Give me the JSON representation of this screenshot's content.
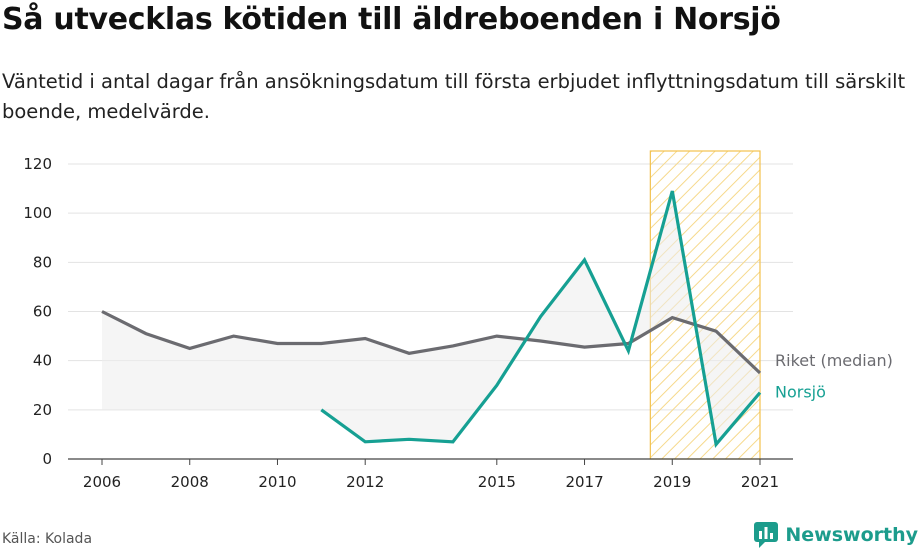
{
  "title": "Så utvecklas kötiden till äldreboenden i Norsjö",
  "subtitle": "Väntetid i antal dagar från ansökningsdatum till första erbjudet inflyttningsdatum till särskilt boende, medelvärde.",
  "source": "Källa: Kolada",
  "brand": "Newsworthy",
  "colors": {
    "riket": "#6b6b70",
    "norsjo": "#16a093",
    "grid": "#e3e3e3",
    "axis": "#444444",
    "area": "#ececec",
    "highlight_stroke": "#f2c14e"
  },
  "chart_data": {
    "type": "line",
    "xlim": [
      2006,
      2021
    ],
    "ylim": [
      0,
      120
    ],
    "x_ticks": [
      2006,
      2008,
      2010,
      2012,
      2015,
      2017,
      2019,
      2021
    ],
    "y_ticks": [
      0,
      20,
      40,
      60,
      80,
      100,
      120
    ],
    "grid": true,
    "highlight_range": [
      2018.5,
      2021
    ],
    "series": [
      {
        "name": "Riket (median)",
        "color": "#6b6b70",
        "x": [
          2006,
          2007,
          2008,
          2009,
          2010,
          2011,
          2012,
          2013,
          2014,
          2015,
          2016,
          2017,
          2018,
          2019,
          2020,
          2021
        ],
        "values": [
          60,
          51,
          45,
          50,
          47,
          47,
          49,
          43,
          46,
          50,
          48,
          45.5,
          47,
          57.5,
          52,
          35
        ]
      },
      {
        "name": "Norsjö",
        "color": "#16a093",
        "x": [
          2011,
          2012,
          2013,
          2014,
          2015,
          2016,
          2017,
          2018,
          2019,
          2020,
          2021
        ],
        "values": [
          20,
          7,
          8,
          7,
          30,
          58,
          81,
          44,
          109,
          6,
          27
        ]
      }
    ]
  }
}
